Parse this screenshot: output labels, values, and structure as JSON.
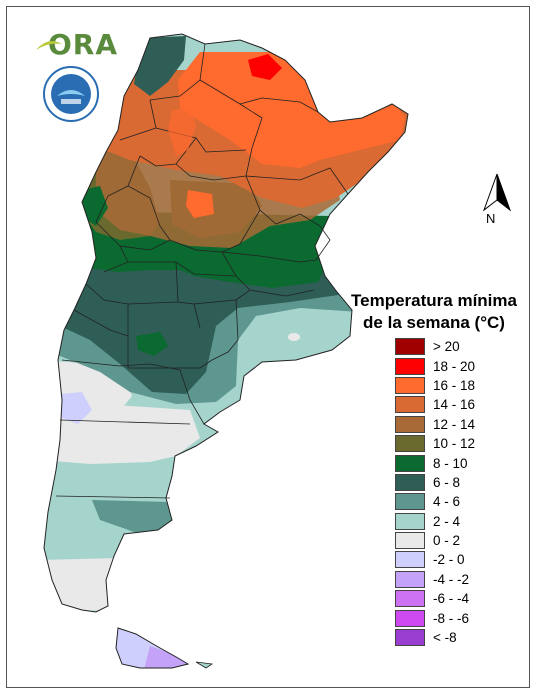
{
  "logo": {
    "text": "ORA"
  },
  "compass": {
    "label": "N"
  },
  "legend": {
    "title": "Temperatura mínima de la semana (°C)",
    "items": [
      {
        "label": "> 20",
        "color": "#a00000"
      },
      {
        "label": "18 - 20",
        "color": "#ff0000"
      },
      {
        "label": "16 - 18",
        "color": "#ff6a2e"
      },
      {
        "label": "14 - 16",
        "color": "#d96a33"
      },
      {
        "label": "12 - 14",
        "color": "#a86a36"
      },
      {
        "label": "10 - 12",
        "color": "#6b6a2e"
      },
      {
        "label": "8 - 10",
        "color": "#0a6a2f"
      },
      {
        "label": "6 - 8",
        "color": "#2e5e56"
      },
      {
        "label": "4 - 6",
        "color": "#5e9690"
      },
      {
        "label": "2 - 4",
        "color": "#a5d4cc"
      },
      {
        "label": "0 - 2",
        "color": "#e9e9e9"
      },
      {
        "label": "-2 - 0",
        "color": "#cfcffd"
      },
      {
        "label": "-4 - -2",
        "color": "#c3a2f8"
      },
      {
        "label": "-6 - -4",
        "color": "#cc72f2"
      },
      {
        "label": "-8 - -6",
        "color": "#cc4af0"
      },
      {
        "label": "< -8",
        "color": "#9a3ed0"
      }
    ]
  }
}
